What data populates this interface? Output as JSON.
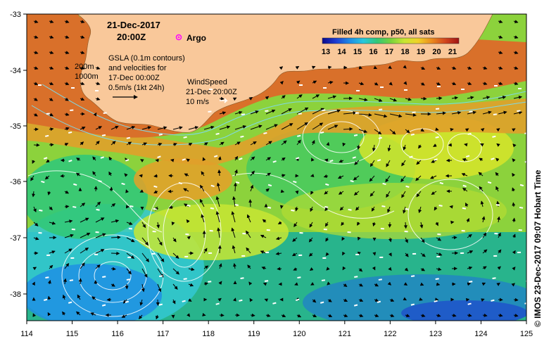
{
  "map": {
    "date": "21-Dec-2017",
    "time": "20:00Z",
    "argo_label": "Argo",
    "gsla": {
      "line1": "GSLA (0.1m contours)",
      "line2": "and velocities for",
      "line3": "17-Dec 00:00Z",
      "scale": "0.5m/s (1kt 24h)"
    },
    "isobaths": [
      "200m",
      "1000m"
    ],
    "wind": {
      "title": "WindSpeed",
      "time": "21-Dec 20:00Z",
      "scale": "10 m/s"
    },
    "colorbar": {
      "title": "Filled 4h comp, p50, all sats",
      "ticks": [
        "13",
        "14",
        "15",
        "16",
        "17",
        "18",
        "19",
        "20",
        "21"
      ],
      "colors": [
        "#0a0a8c",
        "#1e3cd2",
        "#1e8ce6",
        "#28c8dc",
        "#32c878",
        "#78d23c",
        "#c8e632",
        "#f0d228",
        "#eb8c1e",
        "#d2461e",
        "#a01414"
      ]
    },
    "x_axis": {
      "ticks": [
        "114",
        "115",
        "116",
        "117",
        "118",
        "119",
        "120",
        "121",
        "122",
        "123",
        "124",
        "125"
      ]
    },
    "y_axis": {
      "ticks": [
        "-33",
        "-34",
        "-35",
        "-36",
        "-37",
        "-38"
      ]
    },
    "credit": "© IMOS 23-Dec-2017 09:07 Hobart Time",
    "colors": {
      "land": "#f9c89a",
      "warm_shelf": "#d9702a",
      "mid": "#8cd23c",
      "cool": "#2fb47a",
      "cold": "#22a8d6",
      "coldest": "#1e3cd2",
      "contour": "#ffffff",
      "isobath": "#7fd8e6",
      "vector": "#000000",
      "argo": "#ff00ff"
    }
  }
}
